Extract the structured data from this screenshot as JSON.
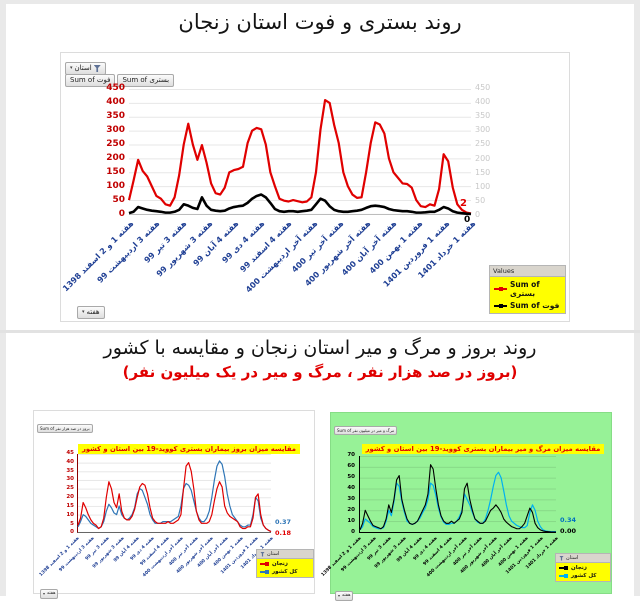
{
  "page": {
    "title_top": "روند بستری و فوت استان زنجان",
    "title_mid": "روند بروز و مرگ و میر استان زنجان و مقایسه با کشور",
    "subtitle_mid": "(بروز در صد هزار نفر ، مرگ و میر در یک میلیون نفر)"
  },
  "icons": {
    "chevron_down": "▾"
  },
  "colors": {
    "hospitalized_line": "#e00000",
    "death_line": "#000000",
    "country_line_left": "#2e75b6",
    "country_line_right": "#00b0f0",
    "axis_red": "#c00000",
    "axis_grey": "#c8c8c8",
    "x_label_blue": "#1f3f94",
    "legend_yellow": "#ffff00",
    "green_panel": "#97f297"
  },
  "top_chart": {
    "filter_button": "استان",
    "field_buttons": [
      "Sum of فوت",
      "Sum of بستری"
    ],
    "week_button": "هفته",
    "legend_header": "Values"
  },
  "small_left": {
    "value_button": "Sum of بروز در صد هزار نفر",
    "filter_button": "استان",
    "week_button": "هفته"
  },
  "small_right": {
    "value_button": "Sum of مرگ و میر در میلیون نفر",
    "filter_button": "استان",
    "week_button": "هفته"
  },
  "chart_data": [
    {
      "type": "line",
      "title": "",
      "xlabel": "",
      "ylabel": "",
      "ylim": [
        0,
        450
      ],
      "yticks": [
        450,
        400,
        350,
        300,
        250,
        200,
        150,
        100,
        50,
        0
      ],
      "grid": true,
      "legend_position": "bottom-right",
      "categories": [
        "هفته 1 و 2 اسفند 1398",
        "هفته 3 اردیبهشت 99",
        "هفته 3 تیر 99",
        "هفته 3 شهریور 99",
        "هفته 4 آبان 99",
        "هفته 4 دی 99",
        "هفته 4 اسفند 99",
        "هفته آخر اردیبهشت 400",
        "هفته آخر تیر 400",
        "هفته آخر شهریور 400",
        "هفته آخر آبان 400",
        "هفته 1 بهمن 400",
        "هفته 1 فروردین 1401",
        "هفته 1 خرداد 1401"
      ],
      "series": [
        {
          "name": "Sum of بستری",
          "color": "#e00000",
          "values": [
            50,
            120,
            195,
            155,
            135,
            100,
            65,
            55,
            35,
            30,
            60,
            140,
            250,
            325,
            250,
            195,
            248,
            185,
            110,
            75,
            70,
            95,
            150,
            158,
            162,
            170,
            255,
            300,
            310,
            305,
            250,
            150,
            100,
            55,
            48,
            45,
            50,
            46,
            42,
            45,
            60,
            150,
            305,
            410,
            400,
            320,
            255,
            150,
            100,
            70,
            58,
            60,
            150,
            255,
            330,
            322,
            290,
            200,
            150,
            130,
            110,
            108,
            95,
            50,
            28,
            25,
            35,
            30,
            90,
            215,
            190,
            95,
            35,
            15,
            5,
            2
          ]
        },
        {
          "name": "Sum of فوت",
          "color": "#000000",
          "values": [
            3,
            8,
            25,
            20,
            15,
            12,
            10,
            8,
            5,
            5,
            8,
            15,
            35,
            30,
            22,
            18,
            60,
            30,
            15,
            12,
            10,
            12,
            20,
            25,
            28,
            30,
            40,
            55,
            65,
            70,
            60,
            40,
            18,
            10,
            8,
            10,
            10,
            8,
            10,
            12,
            15,
            35,
            55,
            48,
            28,
            15,
            10,
            8,
            8,
            10,
            12,
            15,
            22,
            28,
            30,
            28,
            25,
            18,
            14,
            12,
            10,
            10,
            8,
            5,
            5,
            6,
            8,
            8,
            15,
            25,
            20,
            10,
            5,
            3,
            1,
            0
          ]
        }
      ],
      "end_labels": {
        "s0": "2",
        "s1": "0"
      }
    },
    {
      "type": "line",
      "title": "مقایسه میزان بروز بیماران بستری کووید-19 بین استان و کشور",
      "xlabel": "",
      "ylabel": "",
      "ylim": [
        0,
        45
      ],
      "yticks": [
        45,
        40,
        35,
        30,
        25,
        20,
        15,
        10,
        5,
        0
      ],
      "grid": true,
      "legend_position": "bottom-right",
      "categories": [
        "هفته 1 و 2 اسفند 1398",
        "هفته 3 اردیبهشت 99",
        "هفته 3 تیر 99",
        "هفته 3 شهریور 99",
        "هفته 4 آبان 99",
        "هفته 4 دی 99",
        "هفته 4 اسفند 99",
        "هفته آخر اردیبهشت 400",
        "هفته آخر تیر 400",
        "هفته آخر شهریور 400",
        "هفته آخر آبان 400",
        "هفته 1 بهمن 400",
        "هفته 1 فروردین 1401",
        "هفته 1 خرداد 1401"
      ],
      "series": [
        {
          "name": "زنجان",
          "color": "#e00000",
          "values": [
            4,
            8,
            17,
            14,
            10,
            7,
            5,
            4,
            2,
            3,
            8,
            20,
            29,
            25,
            17,
            14,
            22,
            12,
            8,
            7,
            7,
            9,
            13,
            20,
            26,
            28,
            27,
            22,
            14,
            8,
            6,
            5,
            5,
            5,
            5,
            6,
            5,
            5,
            6,
            7,
            10,
            25,
            38,
            40,
            35,
            25,
            12,
            7,
            5,
            5,
            5,
            6,
            10,
            18,
            25,
            29,
            26,
            15,
            11,
            9,
            8,
            7,
            6,
            3,
            2,
            2,
            3,
            3,
            8,
            20,
            22,
            10,
            4,
            2,
            1,
            0.18
          ]
        },
        {
          "name": "کل کشور",
          "color": "#2e75b6",
          "values": [
            3,
            6,
            10,
            9,
            7,
            5,
            4,
            3,
            2,
            3,
            6,
            12,
            16,
            14,
            11,
            10,
            15,
            10,
            8,
            7,
            8,
            10,
            14,
            22,
            25,
            24,
            20,
            16,
            10,
            7,
            5,
            5,
            5,
            6,
            6,
            6,
            6,
            7,
            8,
            9,
            15,
            25,
            28,
            27,
            24,
            18,
            12,
            8,
            6,
            6,
            8,
            12,
            20,
            30,
            38,
            41,
            39,
            32,
            22,
            15,
            10,
            8,
            6,
            4,
            3,
            3,
            4,
            4,
            10,
            20,
            18,
            8,
            4,
            2,
            1,
            0.37
          ]
        }
      ],
      "end_labels": {
        "s0": "0.18",
        "s1": "0.37"
      }
    },
    {
      "type": "line",
      "title": "مقایسه میزان مرگ و میر بیماران بستری کووید-19 بین استان و کشور",
      "xlabel": "",
      "ylabel": "",
      "ylim": [
        0,
        70
      ],
      "yticks": [
        70,
        60,
        50,
        40,
        30,
        20,
        10,
        0
      ],
      "grid": true,
      "legend_position": "bottom-right",
      "background": "#97f297",
      "categories": [
        "هفته 1 و 2 اسفند 1398",
        "هفته 3 اردیبهشت 99",
        "هفته 3 تیر 99",
        "هفته 3 شهریور 99",
        "هفته 4 آبان 99",
        "هفته 4 دی 99",
        "هفته 4 اسفند 99",
        "هفته آخر اردیبهشت 400",
        "هفته آخر تیر 400",
        "هفته آخر شهریور 400",
        "هفته آخر آبان 400",
        "هفته 1 بهمن 400",
        "هفته 1 فروردین 1401",
        "هفته 1 خرداد 1401"
      ],
      "series": [
        {
          "name": "زنجان",
          "color": "#000000",
          "values": [
            2,
            8,
            20,
            15,
            10,
            6,
            5,
            4,
            3,
            5,
            12,
            25,
            18,
            30,
            48,
            52,
            30,
            20,
            12,
            8,
            7,
            8,
            10,
            15,
            20,
            25,
            35,
            62,
            58,
            40,
            25,
            15,
            10,
            8,
            8,
            10,
            8,
            10,
            12,
            18,
            40,
            45,
            30,
            20,
            12,
            10,
            8,
            8,
            10,
            15,
            20,
            22,
            25,
            22,
            18,
            12,
            9,
            7,
            5,
            4,
            3,
            3,
            5,
            8,
            15,
            22,
            18,
            8,
            4,
            2,
            1,
            0.5,
            0.3,
            0.1,
            0,
            0
          ]
        },
        {
          "name": "کل کشور",
          "color": "#00b0f0",
          "values": [
            2,
            5,
            12,
            10,
            8,
            5,
            4,
            3,
            3,
            4,
            10,
            20,
            15,
            28,
            45,
            42,
            28,
            18,
            10,
            8,
            7,
            8,
            10,
            13,
            18,
            22,
            30,
            45,
            43,
            34,
            22,
            14,
            9,
            7,
            7,
            8,
            8,
            10,
            14,
            20,
            35,
            30,
            25,
            18,
            12,
            9,
            8,
            8,
            12,
            20,
            30,
            42,
            52,
            55,
            50,
            38,
            25,
            15,
            10,
            8,
            6,
            5,
            4,
            4,
            6,
            18,
            25,
            20,
            10,
            5,
            2,
            1,
            0.6,
            0.4,
            0.34,
            0.34
          ]
        }
      ],
      "end_labels": {
        "s0": "0.00",
        "s1": "0.34"
      }
    }
  ]
}
